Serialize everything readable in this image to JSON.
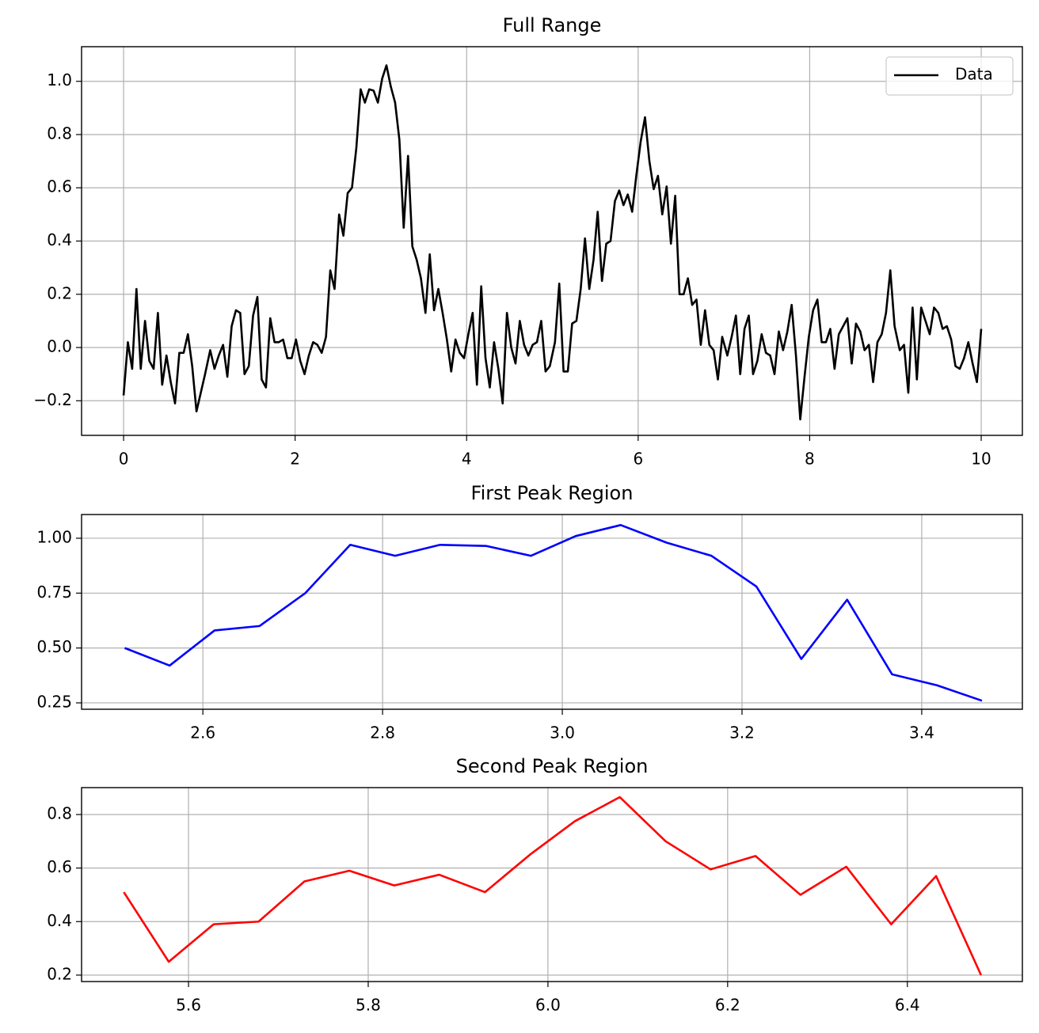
{
  "chart_data": [
    {
      "type": "line",
      "title": "Full Range",
      "x": [
        0,
        0.05,
        0.1,
        0.15,
        0.2,
        0.25,
        0.3,
        0.35,
        0.4,
        0.45,
        0.5,
        0.55,
        0.6,
        0.65,
        0.7,
        0.75,
        0.8,
        0.85,
        0.9,
        0.95,
        1.01,
        1.06,
        1.11,
        1.16,
        1.21,
        1.26,
        1.31,
        1.36,
        1.41,
        1.46,
        1.51,
        1.56,
        1.61,
        1.66,
        1.71,
        1.76,
        1.81,
        1.86,
        1.91,
        1.96,
        2.01,
        2.06,
        2.11,
        2.16,
        2.21,
        2.26,
        2.31,
        2.36,
        2.41,
        2.46,
        2.513,
        2.563,
        2.613,
        2.663,
        2.714,
        2.764,
        2.814,
        2.864,
        2.915,
        2.965,
        3.015,
        3.065,
        3.116,
        3.166,
        3.216,
        3.266,
        3.317,
        3.367,
        3.417,
        3.467,
        3.52,
        3.57,
        3.62,
        3.67,
        3.72,
        3.77,
        3.82,
        3.87,
        3.92,
        3.97,
        4.02,
        4.07,
        4.12,
        4.17,
        4.22,
        4.27,
        4.32,
        4.37,
        4.42,
        4.47,
        4.52,
        4.57,
        4.62,
        4.67,
        4.72,
        4.77,
        4.82,
        4.87,
        4.92,
        4.97,
        5.03,
        5.08,
        5.13,
        5.18,
        5.23,
        5.28,
        5.33,
        5.38,
        5.43,
        5.48,
        5.528,
        5.578,
        5.628,
        5.678,
        5.729,
        5.779,
        5.829,
        5.879,
        5.93,
        5.98,
        6.03,
        6.08,
        6.131,
        6.181,
        6.231,
        6.281,
        6.332,
        6.382,
        6.432,
        6.482,
        6.53,
        6.58,
        6.63,
        6.68,
        6.73,
        6.78,
        6.83,
        6.88,
        6.93,
        6.98,
        7.04,
        7.09,
        7.14,
        7.19,
        7.24,
        7.29,
        7.34,
        7.39,
        7.44,
        7.49,
        7.54,
        7.59,
        7.64,
        7.69,
        7.74,
        7.79,
        7.84,
        7.89,
        7.94,
        7.99,
        8.04,
        8.09,
        8.14,
        8.19,
        8.24,
        8.29,
        8.34,
        8.39,
        8.44,
        8.49,
        8.54,
        8.59,
        8.64,
        8.69,
        8.74,
        8.79,
        8.84,
        8.89,
        8.94,
        8.99,
        9.05,
        9.1,
        9.15,
        9.2,
        9.25,
        9.3,
        9.35,
        9.4,
        9.45,
        9.5,
        9.55,
        9.6,
        9.65,
        9.7,
        9.75,
        9.8,
        9.85,
        9.9,
        9.95,
        10
      ],
      "series": [
        {
          "name": "Data",
          "color": "#000000",
          "values": [
            -0.18,
            0.02,
            -0.08,
            0.22,
            -0.08,
            0.1,
            -0.05,
            -0.08,
            0.13,
            -0.14,
            -0.03,
            -0.13,
            -0.21,
            -0.02,
            -0.02,
            0.05,
            -0.07,
            -0.24,
            -0.17,
            -0.1,
            -0.01,
            -0.08,
            -0.03,
            0.01,
            -0.11,
            0.08,
            0.14,
            0.13,
            -0.1,
            -0.07,
            0.12,
            0.19,
            -0.12,
            -0.15,
            0.11,
            0.02,
            0.02,
            0.03,
            -0.04,
            -0.04,
            0.03,
            -0.05,
            -0.1,
            -0.03,
            0.02,
            0.01,
            -0.02,
            0.04,
            0.29,
            0.22,
            0.5,
            0.42,
            0.58,
            0.6,
            0.75,
            0.97,
            0.92,
            0.97,
            0.965,
            0.92,
            1.01,
            1.06,
            0.98,
            0.92,
            0.78,
            0.45,
            0.72,
            0.38,
            0.33,
            0.26,
            0.13,
            0.35,
            0.14,
            0.22,
            0.13,
            0.03,
            -0.09,
            0.03,
            -0.02,
            -0.04,
            0.05,
            0.13,
            -0.14,
            0.23,
            -0.04,
            -0.15,
            0.02,
            -0.08,
            -0.21,
            0.13,
            0.0,
            -0.06,
            0.1,
            0.01,
            -0.03,
            0.01,
            0.02,
            0.1,
            -0.09,
            -0.07,
            0.02,
            0.24,
            -0.09,
            -0.09,
            0.09,
            0.1,
            0.22,
            0.41,
            0.22,
            0.33,
            0.51,
            0.25,
            0.39,
            0.4,
            0.55,
            0.59,
            0.535,
            0.575,
            0.51,
            0.65,
            0.775,
            0.865,
            0.7,
            0.595,
            0.645,
            0.5,
            0.605,
            0.39,
            0.57,
            0.2,
            0.2,
            0.26,
            0.16,
            0.18,
            0.01,
            0.14,
            0.01,
            -0.01,
            -0.12,
            0.04,
            -0.03,
            0.04,
            0.12,
            -0.1,
            0.07,
            0.12,
            -0.1,
            -0.05,
            0.05,
            -0.02,
            -0.03,
            -0.1,
            0.06,
            -0.01,
            0.06,
            0.16,
            -0.03,
            -0.27,
            -0.11,
            0.04,
            0.14,
            0.18,
            0.02,
            0.02,
            0.07,
            -0.08,
            0.05,
            0.08,
            0.11,
            -0.06,
            0.09,
            0.06,
            -0.01,
            0.01,
            -0.13,
            0.02,
            0.05,
            0.13,
            0.29,
            0.08,
            -0.01,
            0.01,
            -0.17,
            0.15,
            -0.12,
            0.15,
            0.1,
            0.05,
            0.15,
            0.13,
            0.07,
            0.08,
            0.03,
            -0.07,
            -0.08,
            -0.04,
            0.02,
            -0.06,
            -0.13,
            0.07
          ]
        }
      ],
      "xlim": [
        -0.49,
        10.48
      ],
      "ylim": [
        -0.33,
        1.13
      ],
      "xticks": [
        0,
        2,
        4,
        6,
        8,
        10
      ],
      "yticks": [
        {
          "value": -0.2,
          "label": "−0.2"
        },
        {
          "value": 0,
          "label": "0.0"
        },
        0.2,
        0.4,
        0.6,
        0.8,
        {
          "value": 1,
          "label": "1.0"
        }
      ],
      "grid": true,
      "legend": "upper right"
    },
    {
      "type": "line",
      "title": "First Peak Region",
      "x": [
        2.513,
        2.563,
        2.613,
        2.663,
        2.714,
        2.764,
        2.814,
        2.864,
        2.915,
        2.965,
        3.015,
        3.065,
        3.116,
        3.166,
        3.216,
        3.266,
        3.317,
        3.367,
        3.417,
        3.467
      ],
      "values": [
        0.5,
        0.42,
        0.58,
        0.6,
        0.75,
        0.97,
        0.92,
        0.97,
        0.965,
        0.92,
        1.01,
        1.06,
        0.98,
        0.92,
        0.78,
        0.45,
        0.72,
        0.38,
        0.33,
        0.26
      ],
      "color": "#0000ff",
      "xlim": [
        2.465,
        3.512
      ],
      "ylim": [
        0.221,
        1.108
      ],
      "xticks": [
        2.6,
        2.8,
        {
          "value": 3,
          "label": "3.0"
        },
        3.2,
        3.4
      ],
      "yticks": [
        0.25,
        {
          "value": 0.5,
          "label": "0.50"
        },
        0.75,
        {
          "value": 1,
          "label": "1.00"
        }
      ],
      "grid": true
    },
    {
      "type": "line",
      "title": "Second Peak Region",
      "x": [
        5.528,
        5.578,
        5.628,
        5.678,
        5.729,
        5.779,
        5.829,
        5.879,
        5.93,
        5.98,
        6.03,
        6.08,
        6.131,
        6.181,
        6.231,
        6.281,
        6.332,
        6.382,
        6.432,
        6.482
      ],
      "values": [
        0.51,
        0.25,
        0.39,
        0.4,
        0.55,
        0.59,
        0.535,
        0.575,
        0.51,
        0.65,
        0.775,
        0.865,
        0.7,
        0.595,
        0.645,
        0.5,
        0.605,
        0.39,
        0.57,
        0.2
      ],
      "color": "#ff0000",
      "xlim": [
        5.481,
        6.528
      ],
      "ylim": [
        0.176,
        0.9005
      ],
      "xticks": [
        5.6,
        5.8,
        {
          "value": 6,
          "label": "6.0"
        },
        6.2,
        6.4
      ],
      "yticks": [
        0.2,
        0.4,
        0.6,
        0.8
      ],
      "grid": true
    }
  ]
}
